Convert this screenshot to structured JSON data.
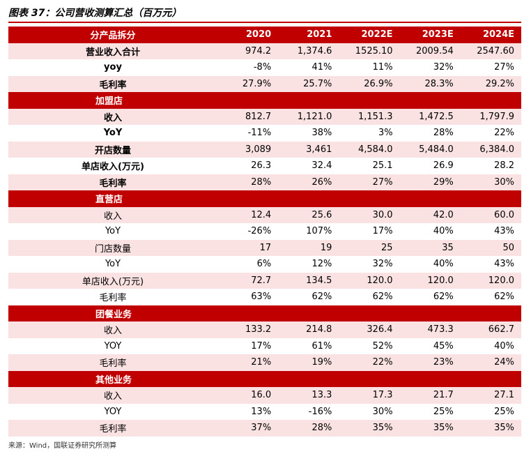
{
  "title": "图表 37：公司营收测算汇总（百万元）",
  "table": {
    "header": [
      "分产品拆分",
      "2020",
      "2021",
      "2022E",
      "2023E",
      "2024E"
    ],
    "rows": [
      [
        "营业收入合计",
        "974.2",
        "1,374.6",
        "1525.10",
        "2009.54",
        "2547.60"
      ],
      [
        "yoy",
        "-8%",
        "41%",
        "11%",
        "32%",
        "27%"
      ],
      [
        "毛利率",
        "27.9%",
        "25.7%",
        "26.9%",
        "28.3%",
        "29.2%"
      ],
      [
        "加盟店"
      ],
      [
        "收入",
        "812.7",
        "1,121.0",
        "1,151.3",
        "1,472.5",
        "1,797.9"
      ],
      [
        "YoY",
        "-11%",
        "38%",
        "3%",
        "28%",
        "22%"
      ],
      [
        "开店数量",
        "3,089",
        "3,461",
        "4,584.0",
        "5,484.0",
        "6,384.0"
      ],
      [
        "单店收入(万元)",
        "26.3",
        "32.4",
        "25.1",
        "26.9",
        "28.2"
      ],
      [
        "毛利率",
        "28%",
        "26%",
        "27%",
        "29%",
        "30%"
      ],
      [
        "直营店"
      ],
      [
        "收入",
        "12.4",
        "25.6",
        "30.0",
        "42.0",
        "60.0"
      ],
      [
        "YoY",
        "-26%",
        "107%",
        "17%",
        "40%",
        "43%"
      ],
      [
        "门店数量",
        "17",
        "19",
        "25",
        "35",
        "50"
      ],
      [
        "YoY",
        "6%",
        "12%",
        "32%",
        "40%",
        "43%"
      ],
      [
        "单店收入(万元)",
        "72.7",
        "134.5",
        "120.0",
        "120.0",
        "120.0"
      ],
      [
        "毛利率",
        "63%",
        "62%",
        "62%",
        "62%",
        "62%"
      ],
      [
        "团餐业务"
      ],
      [
        "收入",
        "133.2",
        "214.8",
        "326.4",
        "473.3",
        "662.7"
      ],
      [
        "YOY",
        "17%",
        "61%",
        "52%",
        "45%",
        "40%"
      ],
      [
        "毛利率",
        "21%",
        "19%",
        "22%",
        "23%",
        "24%"
      ],
      [
        "其他业务"
      ],
      [
        "收入",
        "16.0",
        "13.3",
        "17.3",
        "21.7",
        "27.1"
      ],
      [
        "YOY",
        "13%",
        "-16%",
        "30%",
        "25%",
        "25%"
      ],
      [
        "毛利率",
        "37%",
        "28%",
        "35%",
        "35%",
        "35%"
      ]
    ]
  },
  "source": "来源：Wind，国联证券研究所测算"
}
